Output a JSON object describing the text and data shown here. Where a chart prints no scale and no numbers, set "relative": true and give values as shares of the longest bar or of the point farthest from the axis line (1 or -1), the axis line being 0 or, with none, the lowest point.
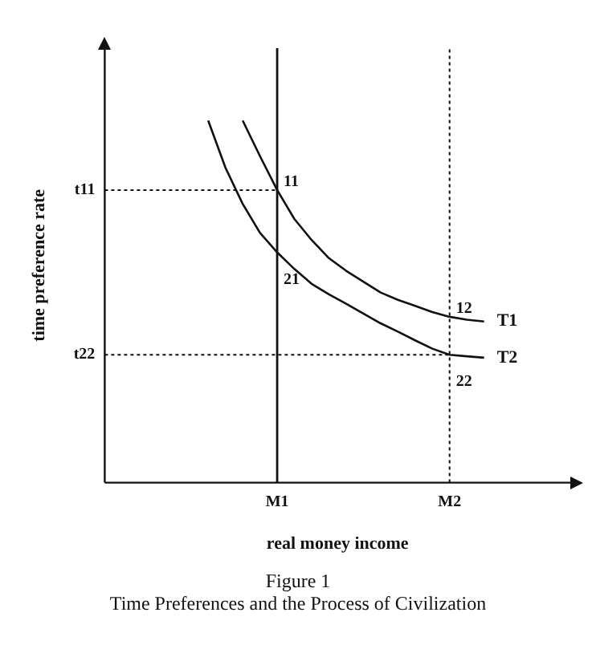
{
  "chart_data": {
    "type": "line",
    "title": "Figure 1",
    "subtitle": "Time Preferences and the Process of Civilization",
    "xlabel": "real money income",
    "ylabel": "time preference rate",
    "relative": true,
    "categories": [
      null,
      null,
      null,
      null,
      null,
      null,
      null,
      null,
      null,
      null,
      "M1",
      null,
      null,
      null,
      null,
      null,
      null,
      null,
      null,
      null,
      "M2",
      null,
      null,
      null,
      null,
      null,
      null,
      null
    ],
    "legend": false,
    "grid": false,
    "marker": "none",
    "line_style": "solid",
    "series": [
      {
        "name": "T1",
        "color": "#111111",
        "values": [
          null,
          null,
          null,
          null,
          null,
          null,
          null,
          null,
          1.0,
          0.902,
          0.808,
          0.728,
          0.67,
          0.62,
          0.585,
          0.555,
          0.525,
          0.505,
          0.488,
          0.471,
          0.458,
          0.45,
          0.445,
          null,
          null,
          null,
          null,
          null
        ]
      },
      {
        "name": "T2",
        "color": "#111111",
        "values": [
          null,
          null,
          null,
          null,
          null,
          null,
          1.0,
          0.87,
          0.77,
          0.69,
          0.636,
          0.59,
          0.549,
          0.52,
          0.494,
          0.467,
          0.44,
          0.417,
          0.393,
          0.37,
          0.353,
          0.349,
          0.345,
          null,
          null,
          null,
          null,
          null
        ]
      }
    ],
    "ref_lines": [
      {
        "axis": "y",
        "value": 0.808,
        "label": "t11",
        "line_style": "dotted",
        "color": "#111111"
      },
      {
        "axis": "y",
        "value": 0.353,
        "label": "t22",
        "line_style": "dotted",
        "color": "#111111"
      },
      {
        "axis": "x",
        "value": "M1",
        "line_style": "solid",
        "color": "#111111"
      },
      {
        "axis": "x",
        "value": "M2",
        "line_style": "dotted",
        "color": "#111111"
      }
    ],
    "annotations": [
      {
        "text": "11",
        "x": "M1",
        "y": 0.808
      },
      {
        "text": "21",
        "x": "M1",
        "y": 0.636
      },
      {
        "text": "12",
        "x": "M2",
        "y": 0.458
      },
      {
        "text": "22",
        "x": "M2",
        "y": 0.353
      }
    ]
  }
}
